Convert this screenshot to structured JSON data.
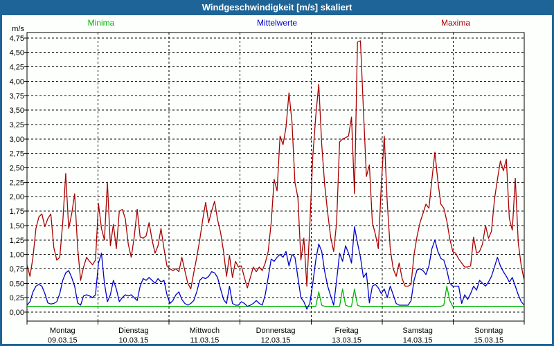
{
  "title": "Windgeschwindigkeit [m/s] skaliert",
  "colors": {
    "titlebar": "#1e6496",
    "window_border": "#1e6496",
    "plot_background": "#fdfffd",
    "minima": "#00b400",
    "mittelwerte": "#0000cc",
    "maxima": "#aa0000"
  },
  "chart_data": {
    "type": "line",
    "title": "Windgeschwindigkeit [m/s] skaliert",
    "unit_label": "m/s",
    "ylabel": "m/s",
    "xlabel": "",
    "ylim": [
      0,
      4.75
    ],
    "y_tick_step": 0.25,
    "grid": "dashed",
    "legend_position": "top",
    "y_ticks": [
      "4,75",
      "4,50",
      "4,25",
      "4,00",
      "3,75",
      "3,50",
      "3,25",
      "3,00",
      "2,75",
      "2,50",
      "2,25",
      "2,00",
      "1,75",
      "1,50",
      "1,25",
      "1,00",
      "0,75",
      "0,50",
      "0,25",
      "0,00"
    ],
    "x_days": [
      {
        "name": "Montag",
        "date": "09.03.15"
      },
      {
        "name": "Dienstag",
        "date": "10.03.15"
      },
      {
        "name": "Mittwoch",
        "date": "11.03.15"
      },
      {
        "name": "Donnerstag",
        "date": "12.03.15"
      },
      {
        "name": "Freitag",
        "date": "13.03.15"
      },
      {
        "name": "Samstag",
        "date": "14.03.15"
      },
      {
        "name": "Sonntag",
        "date": "15.03.15"
      }
    ],
    "points_per_day": 24,
    "series": [
      {
        "name": "Minima",
        "color": "#00b400",
        "values": [
          0.1,
          0.1,
          0.1,
          0.1,
          0.1,
          0.1,
          0.1,
          0.1,
          0.1,
          0.1,
          0.1,
          0.1,
          0.1,
          0.1,
          0.1,
          0.1,
          0.1,
          0.1,
          0.1,
          0.1,
          0.1,
          0.1,
          0.1,
          0.1,
          0.1,
          0.1,
          0.1,
          0.1,
          0.1,
          0.1,
          0.1,
          0.1,
          0.1,
          0.1,
          0.1,
          0.1,
          0.1,
          0.1,
          0.1,
          0.1,
          0.1,
          0.1,
          0.1,
          0.1,
          0.1,
          0.1,
          0.1,
          0.1,
          0.1,
          0.1,
          0.1,
          0.1,
          0.1,
          0.1,
          0.1,
          0.1,
          0.1,
          0.1,
          0.1,
          0.1,
          0.1,
          0.1,
          0.1,
          0.1,
          0.1,
          0.1,
          0.1,
          0.1,
          0.1,
          0.1,
          0.1,
          0.1,
          0.1,
          0.1,
          0.1,
          0.1,
          0.1,
          0.1,
          0.1,
          0.1,
          0.1,
          0.1,
          0.1,
          0.1,
          0.1,
          0.1,
          0.1,
          0.1,
          0.1,
          0.1,
          0.1,
          0.1,
          0.1,
          0.1,
          0.1,
          0.1,
          0.1,
          0.1,
          0.35,
          0.12,
          0.1,
          0.1,
          0.1,
          0.1,
          0.1,
          0.1,
          0.4,
          0.12,
          0.1,
          0.1,
          0.4,
          0.12,
          0.1,
          0.1,
          0.1,
          0.1,
          0.1,
          0.1,
          0.1,
          0.1,
          0.1,
          0.1,
          0.1,
          0.1,
          0.1,
          0.1,
          0.1,
          0.1,
          0.1,
          0.1,
          0.1,
          0.1,
          0.1,
          0.1,
          0.1,
          0.1,
          0.1,
          0.1,
          0.1,
          0.1,
          0.12,
          0.45,
          0.2,
          0.1,
          0.1,
          0.1,
          0.1,
          0.1,
          0.1,
          0.1,
          0.1,
          0.1,
          0.1,
          0.1,
          0.1,
          0.1,
          0.1,
          0.1,
          0.1,
          0.1,
          0.1,
          0.1,
          0.1,
          0.1,
          0.1,
          0.1,
          0.1,
          0.1
        ]
      },
      {
        "name": "Mittelwerte",
        "color": "#0000cc",
        "values": [
          0.12,
          0.18,
          0.35,
          0.45,
          0.48,
          0.45,
          0.32,
          0.16,
          0.14,
          0.15,
          0.18,
          0.32,
          0.55,
          0.68,
          0.72,
          0.6,
          0.45,
          0.16,
          0.12,
          0.28,
          0.3,
          0.28,
          0.25,
          0.3,
          0.85,
          1.02,
          0.5,
          0.18,
          0.3,
          0.55,
          0.4,
          0.18,
          0.25,
          0.3,
          0.28,
          0.3,
          0.25,
          0.2,
          0.45,
          0.58,
          0.55,
          0.6,
          0.55,
          0.5,
          0.58,
          0.52,
          0.55,
          0.3,
          0.15,
          0.2,
          0.3,
          0.35,
          0.22,
          0.15,
          0.12,
          0.15,
          0.2,
          0.35,
          0.55,
          0.6,
          0.58,
          0.62,
          0.7,
          0.68,
          0.6,
          0.4,
          0.22,
          0.15,
          0.45,
          0.15,
          0.12,
          0.12,
          0.18,
          0.15,
          0.1,
          0.12,
          0.15,
          0.2,
          0.15,
          0.12,
          0.3,
          0.6,
          0.92,
          0.88,
          0.95,
          1.0,
          0.95,
          1.05,
          0.8,
          1.0,
          0.95,
          0.6,
          0.25,
          0.18,
          0.05,
          0.15,
          0.5,
          0.9,
          1.18,
          1.05,
          0.7,
          0.45,
          0.28,
          0.12,
          0.55,
          1.02,
          0.88,
          1.15,
          1.02,
          0.85,
          1.48,
          1.2,
          0.95,
          0.6,
          0.68,
          0.16,
          0.45,
          0.48,
          0.42,
          0.32,
          0.4,
          0.25,
          0.45,
          0.3,
          0.15,
          0.12,
          0.12,
          0.12,
          0.12,
          0.2,
          0.55,
          0.73,
          0.75,
          0.72,
          0.65,
          0.8,
          1.1,
          1.25,
          1.05,
          0.93,
          0.9,
          0.73,
          0.5,
          0.45,
          0.45,
          0.45,
          0.15,
          0.3,
          0.22,
          0.32,
          0.45,
          0.38,
          0.55,
          0.5,
          0.45,
          0.52,
          0.62,
          0.78,
          0.95,
          0.8,
          0.7,
          0.62,
          0.52,
          0.6,
          0.45,
          0.3,
          0.18,
          0.12
        ]
      },
      {
        "name": "Maxima",
        "color": "#aa0000",
        "values": [
          0.82,
          0.62,
          0.95,
          1.45,
          1.65,
          1.7,
          1.48,
          1.62,
          1.7,
          1.12,
          0.9,
          0.95,
          1.55,
          2.4,
          1.45,
          1.7,
          2.05,
          1.12,
          0.55,
          0.78,
          0.95,
          0.88,
          0.82,
          0.9,
          1.88,
          1.45,
          1.25,
          2.25,
          1.15,
          1.52,
          1.1,
          1.75,
          1.78,
          1.62,
          1.18,
          0.95,
          1.3,
          1.78,
          1.3,
          1.28,
          1.32,
          1.55,
          1.25,
          1.02,
          1.15,
          1.45,
          1.1,
          0.8,
          0.75,
          0.72,
          0.75,
          0.7,
          0.95,
          0.72,
          0.5,
          0.4,
          0.68,
          0.95,
          1.25,
          1.6,
          1.9,
          1.55,
          1.75,
          1.92,
          1.6,
          1.38,
          1.05,
          0.62,
          0.98,
          0.6,
          0.88,
          0.78,
          0.8,
          0.6,
          0.42,
          0.6,
          0.78,
          0.7,
          0.78,
          0.72,
          0.85,
          1.05,
          1.55,
          2.3,
          2.1,
          3.05,
          2.9,
          3.2,
          3.8,
          3.3,
          2.25,
          1.98,
          0.9,
          1.28,
          0.45,
          1.5,
          2.7,
          3.4,
          3.95,
          2.9,
          2.2,
          1.72,
          1.3,
          1.05,
          1.55,
          2.95,
          3.0,
          3.02,
          3.05,
          3.38,
          2.05,
          4.68,
          4.7,
          3.5,
          2.35,
          2.55,
          1.55,
          1.35,
          1.1,
          2.2,
          3.05,
          1.9,
          1.1,
          0.75,
          0.62,
          0.85,
          0.58,
          0.45,
          0.45,
          0.48,
          1.0,
          1.31,
          1.55,
          1.71,
          1.87,
          1.8,
          2.3,
          2.77,
          2.27,
          1.87,
          1.8,
          1.58,
          1.27,
          1.05,
          1.02,
          0.92,
          0.85,
          0.78,
          0.78,
          0.8,
          1.3,
          1.02,
          1.05,
          1.18,
          1.5,
          1.28,
          1.4,
          1.95,
          2.3,
          2.62,
          2.45,
          2.65,
          1.62,
          1.42,
          2.32,
          1.2,
          0.8,
          0.55
        ]
      }
    ]
  }
}
